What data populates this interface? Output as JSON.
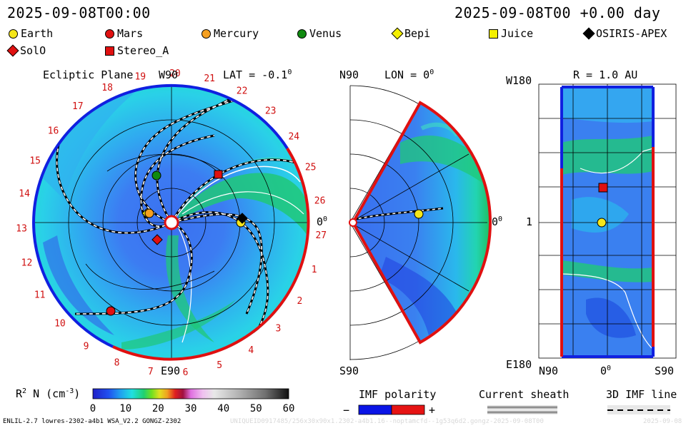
{
  "header": {
    "time_left": "2025-09-08T00:00",
    "time_right": "2025-09-08T00 +0.00 day"
  },
  "legend": [
    {
      "label": "Earth",
      "color": "#f5e61a",
      "shape": "circle-icon"
    },
    {
      "label": "Mars",
      "color": "#e01010",
      "shape": "circle-icon"
    },
    {
      "label": "Mercury",
      "color": "#f5a020",
      "shape": "circle-icon"
    },
    {
      "label": "Venus",
      "color": "#108a10",
      "shape": "circle-icon"
    },
    {
      "label": "Bepi",
      "color": "#f5f000",
      "shape": "diamond-icon"
    },
    {
      "label": "Juice",
      "color": "#f5f000",
      "shape": "square-icon"
    },
    {
      "label": "OSIRIS-APEX",
      "color": "#000000",
      "shape": "diamond-icon"
    },
    {
      "label": "SolO",
      "color": "#e01010",
      "shape": "diamond-icon"
    },
    {
      "label": "Stereo_A",
      "color": "#e01010",
      "shape": "square-icon"
    }
  ],
  "panels": {
    "ecliptic": {
      "title": "Ecliptic Plane",
      "top_label": "W90",
      "lat_label": "LAT = -0.1",
      "lat_sup": "0",
      "bottom_label": "E90",
      "right_label": "0",
      "right_sup": "0",
      "carrington_labels": [
        "19",
        "20",
        "21",
        "22",
        "23",
        "24",
        "25",
        "26",
        "27",
        "1",
        "2",
        "3",
        "4",
        "5",
        "6",
        "7",
        "8",
        "9",
        "10",
        "11",
        "12",
        "13",
        "14",
        "15",
        "16",
        "17",
        "18"
      ]
    },
    "meridional": {
      "top_label": "N90",
      "lon_label": "LON = 0",
      "lon_sup": "0",
      "bottom_label": "S90",
      "right_label": "0",
      "right_sup": "0"
    },
    "radial": {
      "r_label": "R = 1.0 AU",
      "top_left": "W180",
      "mid_left": "1",
      "bottom_left": "E180",
      "bottom_n": "N90",
      "bottom_zero": "0",
      "bottom_zero_sup": "0",
      "bottom_s": "S90"
    }
  },
  "colorbar": {
    "label_prefix": "R",
    "label_sup": "2",
    "label_suffix": " N (cm",
    "label_unit_sup": "-3",
    "label_end": ")",
    "ticks": [
      "0",
      "10",
      "20",
      "30",
      "40",
      "50",
      "60"
    ],
    "min": 0,
    "max": 60
  },
  "imf": {
    "title": "IMF polarity",
    "minus": "−",
    "plus": "+",
    "negative_color": "#0a14e6",
    "positive_color": "#e61414"
  },
  "sheath": {
    "title": "Current sheath"
  },
  "imfline": {
    "title": "3D IMF line"
  },
  "footer": {
    "model": "ENLIL-2.7 lowres-2302-a4b1 WSA_V2.2 GONGZ-2302",
    "run_id": "UNIQUEID0917485/256x30x90x1.2302-a4b1.16--noptamcfd--1g53q6d2.gongz-2025-09-08T00",
    "date": "2025-09-08"
  }
}
